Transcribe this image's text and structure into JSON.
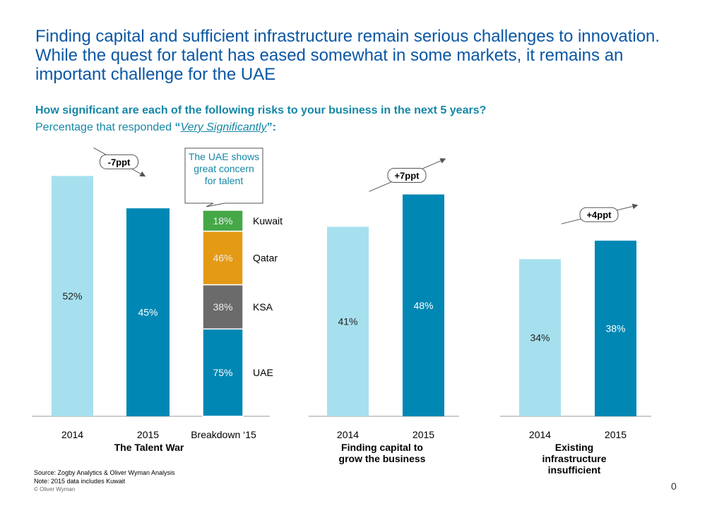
{
  "headline": "Finding capital and sufficient infrastructure remain serious challenges to innovation.  While the quest for talent has eased somewhat in some markets, it remains an important challenge for the UAE",
  "question": "How significant are each of the following risks to your business in the next 5 years?",
  "subtitle": {
    "prefix": "Percentage that responded ",
    "open_quote": "“",
    "emphasis": "Very Significantly",
    "close_quote": "”",
    "suffix": ":"
  },
  "chart_data": [
    {
      "type": "bar",
      "title": "The Talent War",
      "categories": [
        "2014",
        "2015"
      ],
      "values": [
        52,
        45
      ],
      "value_labels": [
        "52%",
        "45%"
      ],
      "colors": [
        "#a6e0ee",
        "#0087b4"
      ],
      "change_label": "-7ppt",
      "change_direction": "down",
      "breakdown": {
        "category": "Breakdown ‘15",
        "note": "The UAE shows great concern for talent",
        "segments": [
          {
            "name": "UAE",
            "value": 75,
            "label": "75%",
            "color": "#0087b4"
          },
          {
            "name": "KSA",
            "value": 38,
            "label": "38%",
            "color": "#6b6b6b"
          },
          {
            "name": "Qatar",
            "value": 46,
            "label": "46%",
            "color": "#e59a15"
          },
          {
            "name": "Kuwait",
            "value": 18,
            "label": "18%",
            "color": "#45a847"
          }
        ]
      }
    },
    {
      "type": "bar",
      "title": "Finding capital to grow the business",
      "categories": [
        "2014",
        "2015"
      ],
      "values": [
        41,
        48
      ],
      "value_labels": [
        "41%",
        "48%"
      ],
      "colors": [
        "#a6e0ee",
        "#0087b4"
      ],
      "change_label": "+7ppt",
      "change_direction": "up"
    },
    {
      "type": "bar",
      "title": "Existing infrastructure insufficient",
      "categories": [
        "2014",
        "2015"
      ],
      "values": [
        34,
        38
      ],
      "value_labels": [
        "34%",
        "38%"
      ],
      "colors": [
        "#a6e0ee",
        "#0087b4"
      ],
      "change_label": "+4ppt",
      "change_direction": "up"
    }
  ],
  "footnotes": {
    "source": "Source: Zogby Analytics & Oliver Wyman Analysis",
    "note": "Note: 2015 data includes Kuwait",
    "copyright": "© Oliver Wyman"
  },
  "page_number": "0"
}
